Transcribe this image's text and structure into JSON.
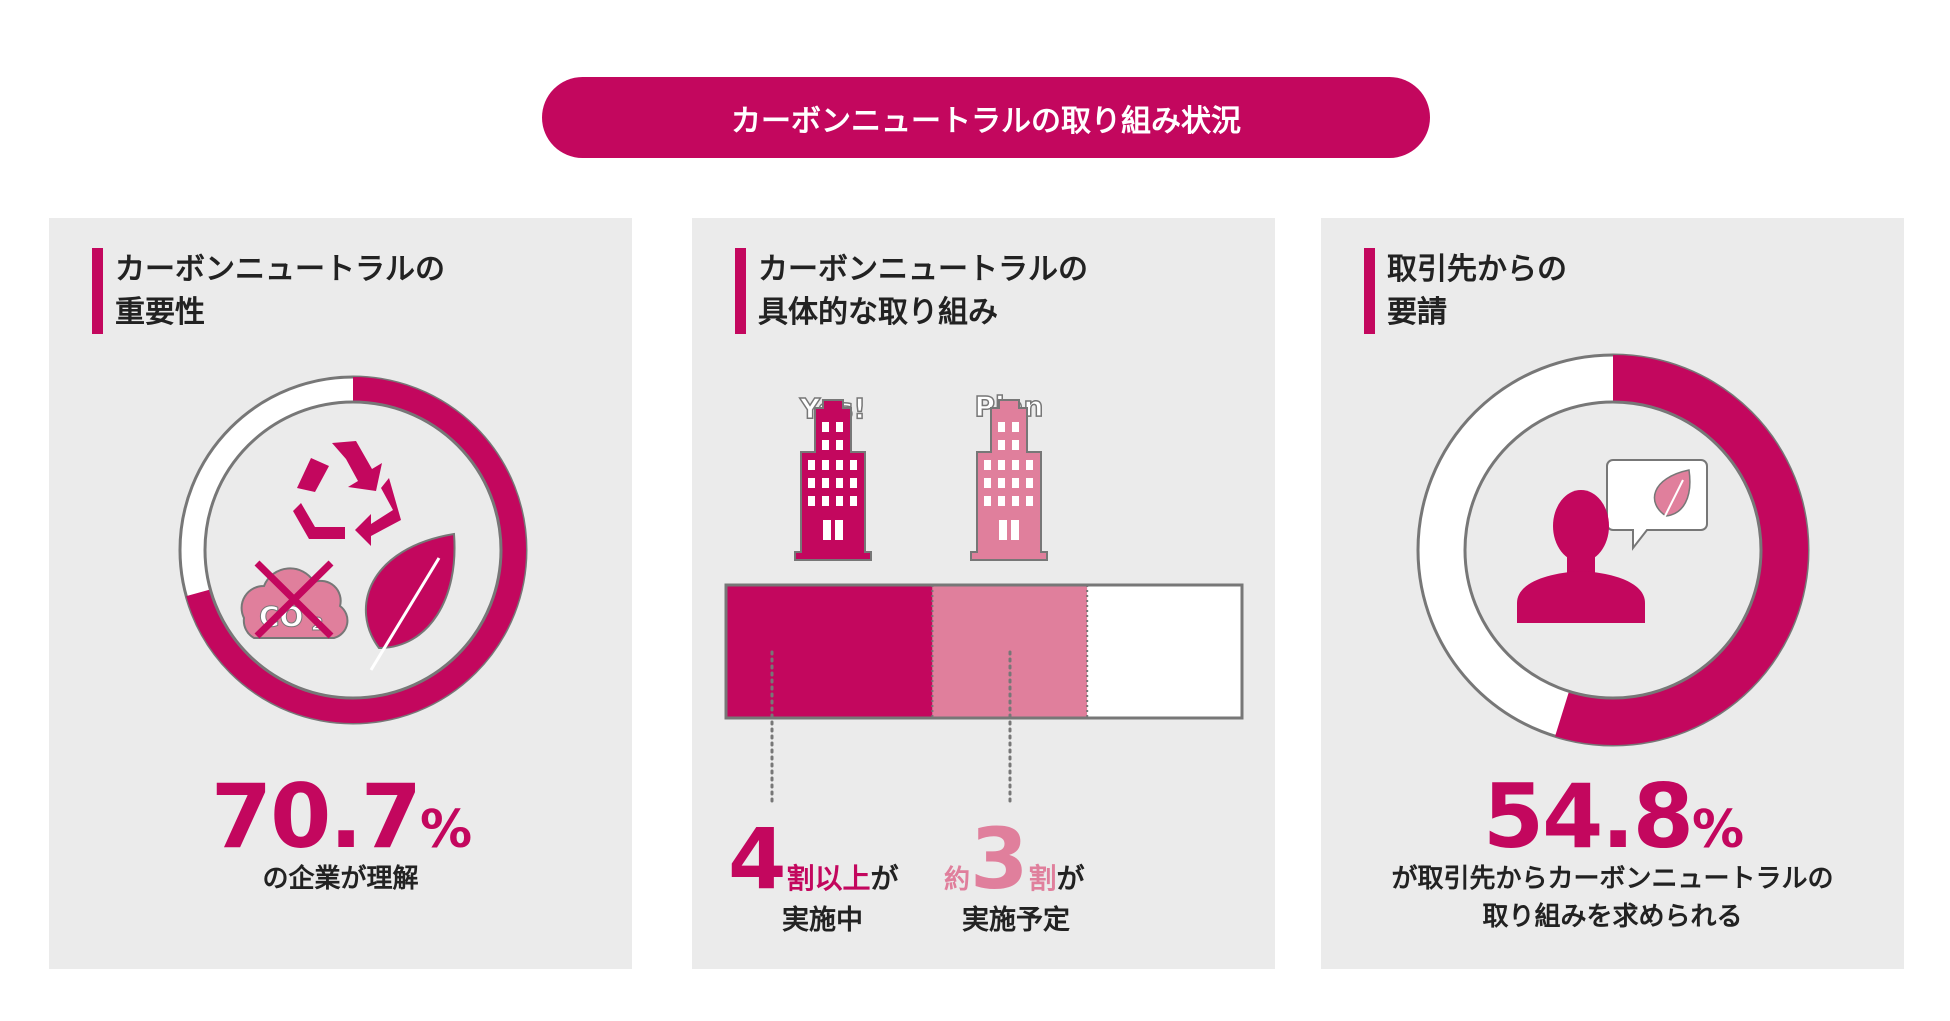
{
  "title": "カーボンニュートラルの取り組み状況",
  "colors": {
    "accent": "#c3075e",
    "light_accent": "#e07f9c",
    "panel_bg": "#ebebeb",
    "outline": "#777777"
  },
  "panels": [
    {
      "heading": [
        "カーボンニュートラルの",
        "重要性"
      ],
      "value_percent": 70.7,
      "value": "70.7",
      "unit": "%",
      "caption": [
        "の企業が理解"
      ],
      "icons": [
        "recycle-icon",
        "co2-crossed-icon",
        "leaf-icon"
      ]
    },
    {
      "heading": [
        "カーボンニュートラルの",
        "具体的な取り組み"
      ],
      "buildings": [
        {
          "label": "Yes!"
        },
        {
          "label": "Plan"
        }
      ],
      "bar_fractions": [
        0.4,
        0.3,
        0.3
      ],
      "stat1": {
        "number": "4",
        "unit": "割以上",
        "suffix": "が",
        "caption": "実施中"
      },
      "stat2": {
        "prefix": "約",
        "number": "3",
        "unit": "割",
        "suffix": "が",
        "caption": "実施予定"
      }
    },
    {
      "heading": [
        "取引先からの",
        "要請"
      ],
      "value_percent": 54.8,
      "value": "54.8",
      "unit": "%",
      "caption": [
        "が取引先からカーボンニュートラルの",
        "取り組みを求められる"
      ],
      "icons": [
        "person-icon",
        "speech-bubble-leaf-icon"
      ]
    }
  ]
}
